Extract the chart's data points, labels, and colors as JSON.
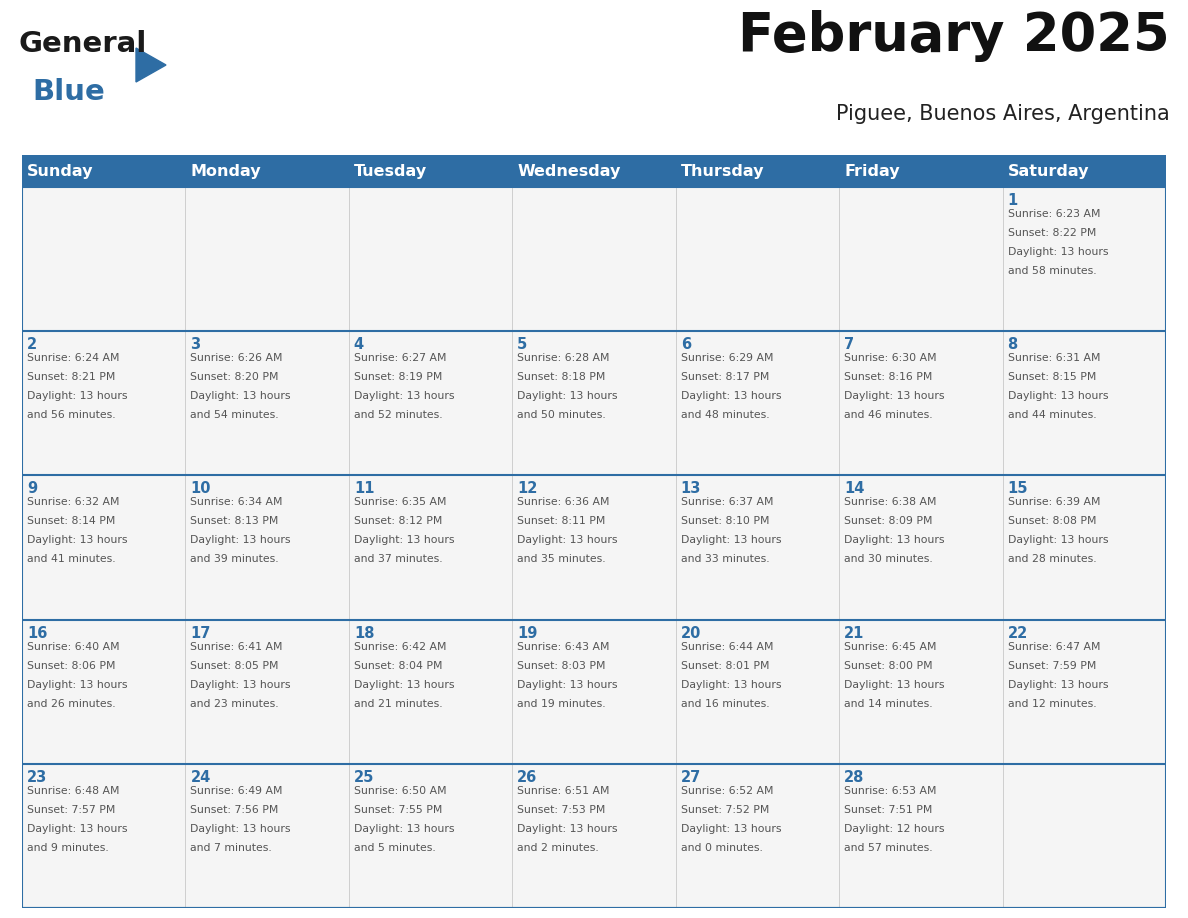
{
  "title": "February 2025",
  "subtitle": "Piguee, Buenos Aires, Argentina",
  "days_of_week": [
    "Sunday",
    "Monday",
    "Tuesday",
    "Wednesday",
    "Thursday",
    "Friday",
    "Saturday"
  ],
  "header_bg": "#2E6DA4",
  "header_text": "#FFFFFF",
  "cell_bg": "#F5F5F5",
  "border_color": "#2E6DA4",
  "text_color": "#555555",
  "day_number_color": "#2E6DA4",
  "logo_general_color": "#1a1a1a",
  "logo_blue_color": "#2E6DA4",
  "weeks": [
    [
      {
        "day": null,
        "info": ""
      },
      {
        "day": null,
        "info": ""
      },
      {
        "day": null,
        "info": ""
      },
      {
        "day": null,
        "info": ""
      },
      {
        "day": null,
        "info": ""
      },
      {
        "day": null,
        "info": ""
      },
      {
        "day": 1,
        "info": "Sunrise: 6:23 AM\nSunset: 8:22 PM\nDaylight: 13 hours\nand 58 minutes."
      }
    ],
    [
      {
        "day": 2,
        "info": "Sunrise: 6:24 AM\nSunset: 8:21 PM\nDaylight: 13 hours\nand 56 minutes."
      },
      {
        "day": 3,
        "info": "Sunrise: 6:26 AM\nSunset: 8:20 PM\nDaylight: 13 hours\nand 54 minutes."
      },
      {
        "day": 4,
        "info": "Sunrise: 6:27 AM\nSunset: 8:19 PM\nDaylight: 13 hours\nand 52 minutes."
      },
      {
        "day": 5,
        "info": "Sunrise: 6:28 AM\nSunset: 8:18 PM\nDaylight: 13 hours\nand 50 minutes."
      },
      {
        "day": 6,
        "info": "Sunrise: 6:29 AM\nSunset: 8:17 PM\nDaylight: 13 hours\nand 48 minutes."
      },
      {
        "day": 7,
        "info": "Sunrise: 6:30 AM\nSunset: 8:16 PM\nDaylight: 13 hours\nand 46 minutes."
      },
      {
        "day": 8,
        "info": "Sunrise: 6:31 AM\nSunset: 8:15 PM\nDaylight: 13 hours\nand 44 minutes."
      }
    ],
    [
      {
        "day": 9,
        "info": "Sunrise: 6:32 AM\nSunset: 8:14 PM\nDaylight: 13 hours\nand 41 minutes."
      },
      {
        "day": 10,
        "info": "Sunrise: 6:34 AM\nSunset: 8:13 PM\nDaylight: 13 hours\nand 39 minutes."
      },
      {
        "day": 11,
        "info": "Sunrise: 6:35 AM\nSunset: 8:12 PM\nDaylight: 13 hours\nand 37 minutes."
      },
      {
        "day": 12,
        "info": "Sunrise: 6:36 AM\nSunset: 8:11 PM\nDaylight: 13 hours\nand 35 minutes."
      },
      {
        "day": 13,
        "info": "Sunrise: 6:37 AM\nSunset: 8:10 PM\nDaylight: 13 hours\nand 33 minutes."
      },
      {
        "day": 14,
        "info": "Sunrise: 6:38 AM\nSunset: 8:09 PM\nDaylight: 13 hours\nand 30 minutes."
      },
      {
        "day": 15,
        "info": "Sunrise: 6:39 AM\nSunset: 8:08 PM\nDaylight: 13 hours\nand 28 minutes."
      }
    ],
    [
      {
        "day": 16,
        "info": "Sunrise: 6:40 AM\nSunset: 8:06 PM\nDaylight: 13 hours\nand 26 minutes."
      },
      {
        "day": 17,
        "info": "Sunrise: 6:41 AM\nSunset: 8:05 PM\nDaylight: 13 hours\nand 23 minutes."
      },
      {
        "day": 18,
        "info": "Sunrise: 6:42 AM\nSunset: 8:04 PM\nDaylight: 13 hours\nand 21 minutes."
      },
      {
        "day": 19,
        "info": "Sunrise: 6:43 AM\nSunset: 8:03 PM\nDaylight: 13 hours\nand 19 minutes."
      },
      {
        "day": 20,
        "info": "Sunrise: 6:44 AM\nSunset: 8:01 PM\nDaylight: 13 hours\nand 16 minutes."
      },
      {
        "day": 21,
        "info": "Sunrise: 6:45 AM\nSunset: 8:00 PM\nDaylight: 13 hours\nand 14 minutes."
      },
      {
        "day": 22,
        "info": "Sunrise: 6:47 AM\nSunset: 7:59 PM\nDaylight: 13 hours\nand 12 minutes."
      }
    ],
    [
      {
        "day": 23,
        "info": "Sunrise: 6:48 AM\nSunset: 7:57 PM\nDaylight: 13 hours\nand 9 minutes."
      },
      {
        "day": 24,
        "info": "Sunrise: 6:49 AM\nSunset: 7:56 PM\nDaylight: 13 hours\nand 7 minutes."
      },
      {
        "day": 25,
        "info": "Sunrise: 6:50 AM\nSunset: 7:55 PM\nDaylight: 13 hours\nand 5 minutes."
      },
      {
        "day": 26,
        "info": "Sunrise: 6:51 AM\nSunset: 7:53 PM\nDaylight: 13 hours\nand 2 minutes."
      },
      {
        "day": 27,
        "info": "Sunrise: 6:52 AM\nSunset: 7:52 PM\nDaylight: 13 hours\nand 0 minutes."
      },
      {
        "day": 28,
        "info": "Sunrise: 6:53 AM\nSunset: 7:51 PM\nDaylight: 12 hours\nand 57 minutes."
      },
      {
        "day": null,
        "info": ""
      }
    ]
  ],
  "figsize": [
    11.88,
    9.18
  ],
  "dpi": 100
}
